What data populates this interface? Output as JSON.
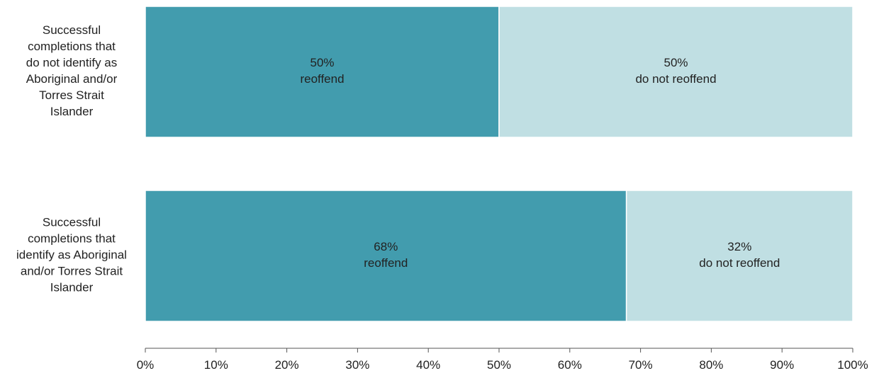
{
  "chart_data": {
    "type": "bar",
    "orientation": "horizontal",
    "stacked": true,
    "categories": [
      "Successful completions that do not identify as Aboriginal and/or Torres Strait Islander",
      "Successful completions that identify as Aboriginal and/or Torres Strait Islander"
    ],
    "category_label_lines": [
      [
        "Successful",
        "completions that",
        "do not identify as",
        "Aboriginal and/or",
        "Torres Strait",
        "Islander"
      ],
      [
        "Successful",
        "completions that",
        "identify as Aboriginal",
        "and/or Torres Strait",
        "Islander"
      ]
    ],
    "series": [
      {
        "key": "reoffend",
        "color": "#429cae",
        "values": [
          50,
          68
        ],
        "data_labels": [
          [
            "50%",
            "reoffend"
          ],
          [
            "68%",
            "reoffend"
          ]
        ]
      },
      {
        "key": "do_not_reoffend",
        "color": "#c0dfe3",
        "values": [
          50,
          32
        ],
        "data_labels": [
          [
            "50%",
            "do not reoffend"
          ],
          [
            "32%",
            "do not reoffend"
          ]
        ]
      }
    ],
    "xlim": [
      0,
      100
    ],
    "x_ticks": [
      0,
      10,
      20,
      30,
      40,
      50,
      60,
      70,
      80,
      90,
      100
    ],
    "x_tick_labels": [
      "0%",
      "10%",
      "20%",
      "30%",
      "40%",
      "50%",
      "60%",
      "70%",
      "80%",
      "90%",
      "100%"
    ],
    "title": "",
    "xlabel": "",
    "ylabel": "",
    "grid": false,
    "legend": "none"
  }
}
